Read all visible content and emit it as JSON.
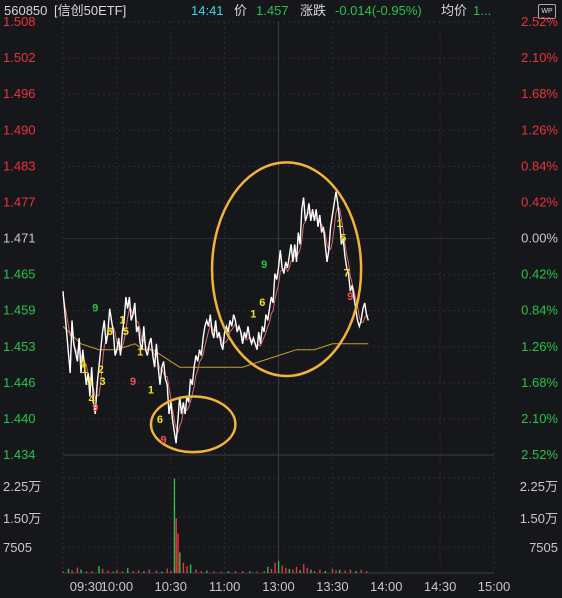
{
  "header": {
    "code": "560850",
    "name": "[信创50ETF]",
    "time": "14:41",
    "price_label": "价",
    "price": "1.457",
    "change_label": "涨跌",
    "change": "-0.014(-0.95%)",
    "avg_label": "均价",
    "avg_value": "1...",
    "badge": "WP"
  },
  "colors": {
    "background": "#16171b",
    "up": "#e8343c",
    "down": "#27c24c",
    "price_line": "#ffffff",
    "avg_line": "#c9a227",
    "ma_line": "#d96a6a",
    "circle": "#f2b33b",
    "seq_yellow": "#f5e21b",
    "seq_green": "#27c24c",
    "seq_red": "#ff4d4d"
  },
  "chart_data": {
    "type": "line",
    "title": "",
    "x_ticks": [
      "09:30",
      "10:00",
      "10:30",
      "11:00",
      "13:00",
      "13:30",
      "14:00",
      "14:30",
      "15:00"
    ],
    "price_ticks": [
      "1.508",
      "1.502",
      "1.496",
      "1.490",
      "1.483",
      "1.477",
      "1.471",
      "1.465",
      "1.459",
      "1.453",
      "1.446",
      "1.440",
      "1.434"
    ],
    "pct_ticks": [
      "2.52%",
      "2.10%",
      "1.68%",
      "1.26%",
      "0.84%",
      "0.42%",
      "0.00%",
      "0.42%",
      "0.84%",
      "1.26%",
      "1.68%",
      "2.10%",
      "2.52%"
    ],
    "volume_ticks": [
      "2.25万",
      "1.50万",
      "7505"
    ],
    "ylim": [
      1.434,
      1.508
    ],
    "prev_close": 1.471,
    "price_series": [
      [
        0,
        1.462
      ],
      [
        2,
        1.455
      ],
      [
        4,
        1.448
      ],
      [
        5,
        1.457
      ],
      [
        6,
        1.453
      ],
      [
        8,
        1.45
      ],
      [
        9,
        1.454
      ],
      [
        10,
        1.448
      ],
      [
        11,
        1.452
      ],
      [
        13,
        1.446
      ],
      [
        14,
        1.448
      ],
      [
        15,
        1.444
      ],
      [
        16,
        1.449
      ],
      [
        17,
        1.443
      ],
      [
        18,
        1.441
      ],
      [
        19,
        1.446
      ],
      [
        20,
        1.449
      ],
      [
        21,
        1.452
      ],
      [
        22,
        1.455
      ],
      [
        23,
        1.457
      ],
      [
        24,
        1.453
      ],
      [
        25,
        1.455
      ],
      [
        26,
        1.459
      ],
      [
        27,
        1.457
      ],
      [
        28,
        1.455
      ],
      [
        29,
        1.451
      ],
      [
        30,
        1.452
      ],
      [
        31,
        1.454
      ],
      [
        32,
        1.451
      ],
      [
        33,
        1.455
      ],
      [
        34,
        1.457
      ],
      [
        35,
        1.461
      ],
      [
        36,
        1.459
      ],
      [
        37,
        1.461
      ],
      [
        38,
        1.457
      ],
      [
        39,
        1.458
      ],
      [
        40,
        1.46
      ],
      [
        41,
        1.455
      ],
      [
        42,
        1.456
      ],
      [
        43,
        1.453
      ],
      [
        44,
        1.452
      ],
      [
        45,
        1.456
      ],
      [
        46,
        1.452
      ],
      [
        47,
        1.451
      ],
      [
        48,
        1.453
      ],
      [
        49,
        1.454
      ],
      [
        50,
        1.451
      ],
      [
        51,
        1.449
      ],
      [
        52,
        1.453
      ],
      [
        53,
        1.449
      ],
      [
        54,
        1.446
      ],
      [
        55,
        1.449
      ],
      [
        56,
        1.45
      ],
      [
        57,
        1.447
      ],
      [
        58,
        1.446
      ],
      [
        59,
        1.441
      ],
      [
        60,
        1.443
      ],
      [
        61,
        1.44
      ],
      [
        62,
        1.438
      ],
      [
        63,
        1.436
      ],
      [
        64,
        1.44
      ],
      [
        65,
        1.444
      ],
      [
        66,
        1.441
      ],
      [
        67,
        1.443
      ],
      [
        68,
        1.441
      ],
      [
        69,
        1.444
      ],
      [
        70,
        1.443
      ],
      [
        71,
        1.447
      ],
      [
        72,
        1.446
      ],
      [
        73,
        1.449
      ],
      [
        74,
        1.451
      ],
      [
        75,
        1.45
      ],
      [
        76,
        1.452
      ],
      [
        77,
        1.451
      ],
      [
        78,
        1.454
      ],
      [
        79,
        1.456
      ],
      [
        80,
        1.457
      ],
      [
        81,
        1.456
      ],
      [
        82,
        1.458
      ],
      [
        83,
        1.455
      ],
      [
        84,
        1.454
      ],
      [
        85,
        1.457
      ],
      [
        86,
        1.454
      ],
      [
        87,
        1.455
      ],
      [
        88,
        1.453
      ],
      [
        89,
        1.452
      ],
      [
        90,
        1.455
      ],
      [
        91,
        1.456
      ],
      [
        92,
        1.455
      ],
      [
        93,
        1.457
      ],
      [
        94,
        1.456
      ],
      [
        95,
        1.458
      ],
      [
        96,
        1.457
      ],
      [
        97,
        1.455
      ],
      [
        98,
        1.456
      ],
      [
        99,
        1.455
      ],
      [
        100,
        1.453
      ],
      [
        101,
        1.455
      ],
      [
        102,
        1.454
      ],
      [
        103,
        1.456
      ],
      [
        104,
        1.454
      ],
      [
        105,
        1.453
      ],
      [
        106,
        1.454
      ],
      [
        107,
        1.453
      ],
      [
        108,
        1.452
      ],
      [
        109,
        1.455
      ],
      [
        110,
        1.453
      ],
      [
        111,
        1.456
      ],
      [
        112,
        1.455
      ],
      [
        113,
        1.458
      ],
      [
        114,
        1.457
      ],
      [
        115,
        1.459
      ],
      [
        116,
        1.461
      ],
      [
        117,
        1.46
      ],
      [
        118,
        1.465
      ],
      [
        119,
        1.464
      ],
      [
        120,
        1.466
      ],
      [
        121,
        1.469
      ],
      [
        122,
        1.466
      ],
      [
        123,
        1.465
      ],
      [
        124,
        1.467
      ],
      [
        125,
        1.466
      ],
      [
        126,
        1.468
      ],
      [
        127,
        1.47
      ],
      [
        128,
        1.467
      ],
      [
        129,
        1.47
      ],
      [
        130,
        1.467
      ],
      [
        131,
        1.472
      ],
      [
        132,
        1.47
      ],
      [
        133,
        1.476
      ],
      [
        134,
        1.478
      ],
      [
        135,
        1.474
      ],
      [
        136,
        1.475
      ],
      [
        137,
        1.477
      ],
      [
        138,
        1.474
      ],
      [
        139,
        1.476
      ],
      [
        140,
        1.474
      ],
      [
        141,
        1.476
      ],
      [
        142,
        1.473
      ],
      [
        143,
        1.475
      ],
      [
        144,
        1.472
      ],
      [
        145,
        1.473
      ],
      [
        146,
        1.47
      ],
      [
        147,
        1.467
      ],
      [
        148,
        1.469
      ],
      [
        149,
        1.473
      ],
      [
        150,
        1.475
      ],
      [
        151,
        1.477
      ],
      [
        152,
        1.479
      ],
      [
        153,
        1.477
      ],
      [
        154,
        1.474
      ],
      [
        155,
        1.47
      ],
      [
        156,
        1.471
      ],
      [
        157,
        1.468
      ],
      [
        158,
        1.466
      ],
      [
        159,
        1.465
      ],
      [
        160,
        1.462
      ],
      [
        161,
        1.463
      ],
      [
        162,
        1.461
      ],
      [
        163,
        1.459
      ],
      [
        164,
        1.457
      ],
      [
        165,
        1.456
      ],
      [
        166,
        1.457
      ],
      [
        167,
        1.459
      ],
      [
        168,
        1.46
      ],
      [
        169,
        1.458
      ],
      [
        170,
        1.457
      ]
    ],
    "avg_series": [
      [
        0,
        1.456
      ],
      [
        10,
        1.453
      ],
      [
        20,
        1.452
      ],
      [
        30,
        1.452
      ],
      [
        40,
        1.453
      ],
      [
        45,
        1.452
      ],
      [
        50,
        1.452
      ],
      [
        55,
        1.451
      ],
      [
        60,
        1.45
      ],
      [
        65,
        1.449
      ],
      [
        70,
        1.449
      ],
      [
        80,
        1.449
      ],
      [
        90,
        1.449
      ],
      [
        100,
        1.449
      ],
      [
        110,
        1.45
      ],
      [
        120,
        1.451
      ],
      [
        130,
        1.452
      ],
      [
        140,
        1.452
      ],
      [
        150,
        1.453
      ],
      [
        160,
        1.453
      ],
      [
        170,
        1.453
      ]
    ],
    "volume": [
      [
        0,
        0.05
      ],
      [
        3,
        0.12
      ],
      [
        5,
        0.08
      ],
      [
        8,
        0.16
      ],
      [
        10,
        0.1
      ],
      [
        13,
        0.05
      ],
      [
        16,
        0.06
      ],
      [
        20,
        0.2
      ],
      [
        22,
        0.12
      ],
      [
        25,
        0.07
      ],
      [
        28,
        0.04
      ],
      [
        30,
        0.09
      ],
      [
        33,
        0.05
      ],
      [
        36,
        0.14
      ],
      [
        39,
        0.06
      ],
      [
        42,
        0.08
      ],
      [
        45,
        0.05
      ],
      [
        48,
        0.1
      ],
      [
        52,
        0.07
      ],
      [
        55,
        0.04
      ],
      [
        58,
        0.13
      ],
      [
        60,
        0.07
      ],
      [
        62,
        2.75
      ],
      [
        63,
        1.6
      ],
      [
        64,
        1.15
      ],
      [
        65,
        0.6
      ],
      [
        67,
        0.3
      ],
      [
        69,
        0.2
      ],
      [
        71,
        0.25
      ],
      [
        74,
        0.1
      ],
      [
        77,
        0.06
      ],
      [
        80,
        0.07
      ],
      [
        84,
        0.05
      ],
      [
        88,
        0.04
      ],
      [
        92,
        0.05
      ],
      [
        96,
        0.06
      ],
      [
        100,
        0.06
      ],
      [
        104,
        0.05
      ],
      [
        108,
        0.04
      ],
      [
        112,
        0.06
      ],
      [
        114,
        0.18
      ],
      [
        116,
        0.12
      ],
      [
        118,
        0.3
      ],
      [
        120,
        0.35
      ],
      [
        122,
        0.22
      ],
      [
        124,
        0.15
      ],
      [
        126,
        0.12
      ],
      [
        128,
        0.1
      ],
      [
        130,
        0.18
      ],
      [
        132,
        0.08
      ],
      [
        134,
        0.26
      ],
      [
        136,
        0.15
      ],
      [
        138,
        0.1
      ],
      [
        140,
        0.06
      ],
      [
        143,
        0.1
      ],
      [
        146,
        0.06
      ],
      [
        150,
        0.12
      ],
      [
        152,
        0.08
      ],
      [
        154,
        0.09
      ],
      [
        157,
        0.07
      ],
      [
        160,
        0.1
      ],
      [
        163,
        0.06
      ],
      [
        166,
        0.1
      ],
      [
        169,
        0.06
      ]
    ],
    "seq_marks": [
      {
        "t": "4",
        "c": "yellow",
        "x": 11,
        "p": 1.449
      },
      {
        "t": "1",
        "c": "yellow",
        "x": 12,
        "p": 1.448
      },
      {
        "t": "1",
        "c": "yellow",
        "x": 15,
        "p": 1.446
      },
      {
        "t": "2",
        "c": "yellow",
        "x": 21,
        "p": 1.448
      },
      {
        "t": "3",
        "c": "yellow",
        "x": 22,
        "p": 1.446
      },
      {
        "t": "4",
        "c": "yellow",
        "x": 16,
        "p": 1.443
      },
      {
        "t": "9",
        "c": "red",
        "x": 18,
        "p": 1.4415
      },
      {
        "t": "9",
        "c": "green",
        "x": 18,
        "p": 1.4585
      },
      {
        "t": "6",
        "c": "yellow",
        "x": 26,
        "p": 1.4545
      },
      {
        "t": "1",
        "c": "yellow",
        "x": 33,
        "p": 1.4565
      },
      {
        "t": "5",
        "c": "yellow",
        "x": 35,
        "p": 1.4545
      },
      {
        "t": "1",
        "c": "yellow",
        "x": 43,
        "p": 1.451
      },
      {
        "t": "9",
        "c": "red",
        "x": 39,
        "p": 1.446
      },
      {
        "t": "1",
        "c": "yellow",
        "x": 49,
        "p": 1.4445
      },
      {
        "t": "6",
        "c": "yellow",
        "x": 54,
        "p": 1.4395
      },
      {
        "t": "9",
        "c": "red",
        "x": 56,
        "p": 1.436
      },
      {
        "t": "1",
        "c": "yellow",
        "x": 106,
        "p": 1.4575
      },
      {
        "t": "6",
        "c": "yellow",
        "x": 111,
        "p": 1.4595
      },
      {
        "t": "9",
        "c": "green",
        "x": 112,
        "p": 1.466
      },
      {
        "t": "1",
        "c": "yellow",
        "x": 154,
        "p": 1.473
      },
      {
        "t": "5",
        "c": "yellow",
        "x": 156,
        "p": 1.4705
      },
      {
        "t": "7",
        "c": "yellow",
        "x": 158,
        "p": 1.4645
      },
      {
        "t": "9",
        "c": "red",
        "x": 160,
        "p": 1.4605
      }
    ]
  }
}
